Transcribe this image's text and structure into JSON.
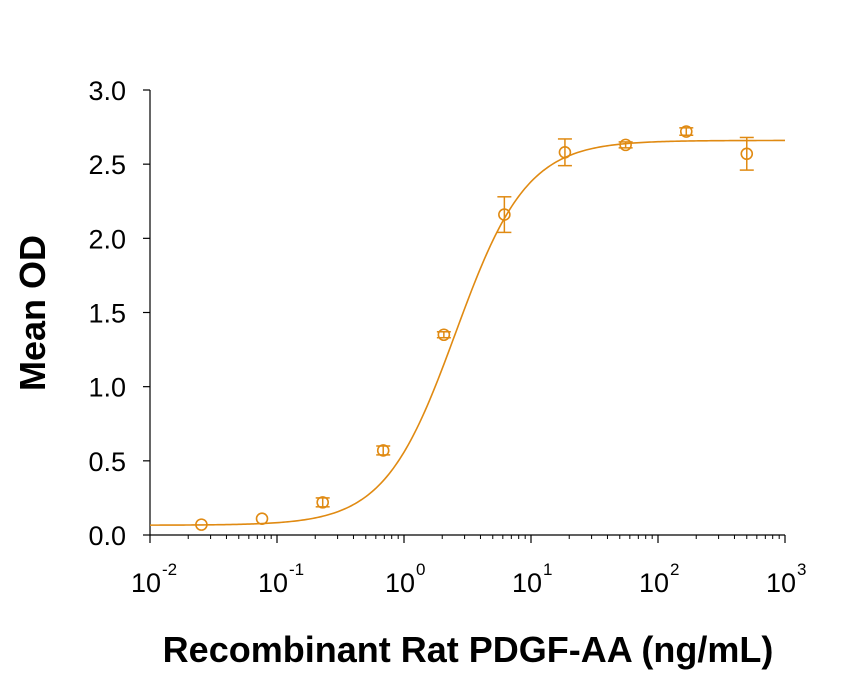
{
  "chart_data": {
    "type": "scatter",
    "title": "",
    "xlabel": "Recombinant Rat PDGF-AA (ng/mL)",
    "ylabel": "Mean OD",
    "x_scale": "log",
    "xlim": [
      0.01,
      1000
    ],
    "ylim": [
      0,
      3.0
    ],
    "grid": false,
    "legend": "none",
    "color": "#E08A12",
    "y_ticks": [
      "0.0",
      "0.5",
      "1.0",
      "1.5",
      "2.0",
      "2.5",
      "3.0"
    ],
    "x_ticks": [
      {
        "base": "10",
        "exp": "-2"
      },
      {
        "base": "10",
        "exp": "-1"
      },
      {
        "base": "10",
        "exp": "0"
      },
      {
        "base": "10",
        "exp": "1"
      },
      {
        "base": "10",
        "exp": "2"
      },
      {
        "base": "10",
        "exp": "3"
      }
    ],
    "series": [
      {
        "points": [
          {
            "x": 0.0254,
            "y": 0.07,
            "err": 0.01
          },
          {
            "x": 0.0762,
            "y": 0.11,
            "err": 0.015
          },
          {
            "x": 0.229,
            "y": 0.22,
            "err": 0.03
          },
          {
            "x": 0.686,
            "y": 0.57,
            "err": 0.03
          },
          {
            "x": 2.06,
            "y": 1.35,
            "err": 0.02
          },
          {
            "x": 6.17,
            "y": 2.16,
            "err": 0.12
          },
          {
            "x": 18.5,
            "y": 2.58,
            "err": 0.09
          },
          {
            "x": 55.6,
            "y": 2.63,
            "err": 0.02
          },
          {
            "x": 167,
            "y": 2.72,
            "err": 0.025
          },
          {
            "x": 500,
            "y": 2.57,
            "err": 0.11
          }
        ],
        "fit": {
          "model": "4PL",
          "bottom": 0.066,
          "top": 2.66,
          "ec50": 2.55,
          "hill": 1.55
        }
      }
    ]
  }
}
